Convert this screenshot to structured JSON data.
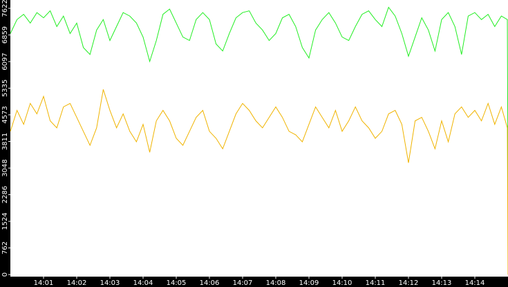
{
  "chart_data": {
    "type": "line",
    "x": [
      0,
      0.2,
      0.4,
      0.6,
      0.8,
      1,
      1.2,
      1.4,
      1.6,
      1.8,
      2,
      2.2,
      2.4,
      2.6,
      2.8,
      3,
      3.2,
      3.4,
      3.6,
      3.8,
      4,
      4.2,
      4.4,
      4.6,
      4.8,
      5,
      5.2,
      5.4,
      5.6,
      5.8,
      6,
      6.2,
      6.4,
      6.6,
      6.8,
      7,
      7.2,
      7.4,
      7.6,
      7.8,
      8,
      8.2,
      8.4,
      8.6,
      8.8,
      9,
      9.2,
      9.4,
      9.6,
      9.8,
      10,
      10.2,
      10.4,
      10.6,
      10.8,
      11,
      11.2,
      11.4,
      11.6,
      11.8,
      12,
      12.2,
      12.4,
      12.6,
      12.8,
      13,
      13.2,
      13.4,
      13.6,
      13.8,
      14,
      14.2,
      14.4,
      14.6,
      14.8,
      14.98,
      15
    ],
    "series": [
      {
        "color": "#22ee22",
        "values": [
          6900,
          7300,
          7450,
          7200,
          7500,
          7350,
          7550,
          7100,
          7400,
          6900,
          7200,
          6500,
          6300,
          7000,
          7300,
          6700,
          7100,
          7500,
          7400,
          7200,
          6800,
          6100,
          6700,
          7450,
          7600,
          7200,
          6800,
          6700,
          7300,
          7500,
          7300,
          6600,
          6400,
          6900,
          7350,
          7500,
          7550,
          7200,
          7000,
          6700,
          6900,
          7350,
          7450,
          7100,
          6500,
          6200,
          7000,
          7300,
          7500,
          7200,
          6800,
          6700,
          7100,
          7450,
          7550,
          7300,
          7100,
          7650,
          7400,
          6900,
          6250,
          6800,
          7350,
          7000,
          6400,
          7300,
          7500,
          7100,
          6300,
          7400,
          7500,
          7300,
          7450,
          7100,
          7400,
          7300,
          2300
        ]
      },
      {
        "color": "#f0b400",
        "values": [
          4100,
          4700,
          4300,
          4900,
          4600,
          5100,
          4400,
          4200,
          4800,
          4900,
          4500,
          4100,
          3700,
          4200,
          5300,
          4700,
          4200,
          4600,
          4100,
          3800,
          4300,
          3500,
          4400,
          4700,
          4400,
          3900,
          3700,
          4100,
          4500,
          4700,
          4100,
          3900,
          3600,
          4100,
          4600,
          4900,
          4700,
          4400,
          4200,
          4500,
          4800,
          4500,
          4100,
          4000,
          3800,
          4300,
          4800,
          4500,
          4200,
          4700,
          4100,
          4400,
          4800,
          4400,
          4200,
          3900,
          4100,
          4600,
          4700,
          4300,
          3200,
          4400,
          4500,
          4100,
          3600,
          4400,
          3800,
          4600,
          4800,
          4500,
          4700,
          4400,
          4900,
          4300,
          4800,
          4200,
          0
        ]
      }
    ],
    "xlim": [
      0,
      15
    ],
    "xticks": [
      {
        "value": 1,
        "label": "14:01"
      },
      {
        "value": 2,
        "label": "14:02"
      },
      {
        "value": 3,
        "label": "14:03"
      },
      {
        "value": 4,
        "label": "14:04"
      },
      {
        "value": 5,
        "label": "14:05"
      },
      {
        "value": 6,
        "label": "14:06"
      },
      {
        "value": 7,
        "label": "14:07"
      },
      {
        "value": 8,
        "label": "14:08"
      },
      {
        "value": 9,
        "label": "14:09"
      },
      {
        "value": 10,
        "label": "14:10"
      },
      {
        "value": 11,
        "label": "14:11"
      },
      {
        "value": 12,
        "label": "14:12"
      },
      {
        "value": 13,
        "label": "14:13"
      },
      {
        "value": 14,
        "label": "14:14"
      }
    ],
    "ylim": [
      0,
      7860
    ],
    "yticks": [
      0,
      762,
      1524,
      2286,
      3048,
      3811,
      4573,
      5335,
      6097,
      6859,
      7622
    ]
  }
}
